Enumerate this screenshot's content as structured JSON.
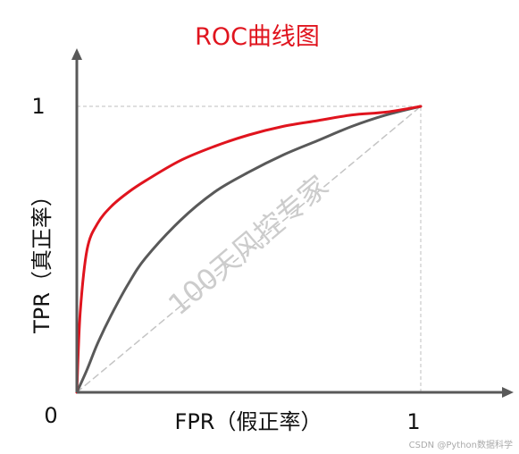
{
  "chart_data": {
    "type": "line",
    "title": "ROC曲线图",
    "xlabel": "FPR（假正率）",
    "ylabel": "TPR（真正率）",
    "xlim": [
      0,
      1
    ],
    "ylim": [
      0,
      1
    ],
    "x_ticks": [
      "0",
      "1"
    ],
    "y_ticks": [
      "1"
    ],
    "grid": false,
    "series": [
      {
        "color": "#e0141e",
        "x": [
          0,
          0.01,
          0.03,
          0.06,
          0.1,
          0.15,
          0.2,
          0.3,
          0.4,
          0.5,
          0.6,
          0.7,
          0.8,
          0.9,
          1.0
        ],
        "y": [
          0,
          0.28,
          0.5,
          0.59,
          0.65,
          0.7,
          0.74,
          0.81,
          0.86,
          0.9,
          0.93,
          0.95,
          0.97,
          0.98,
          1.0
        ]
      },
      {
        "color": "#595959",
        "x": [
          0,
          0.03,
          0.06,
          0.1,
          0.15,
          0.2,
          0.3,
          0.4,
          0.5,
          0.6,
          0.7,
          0.8,
          0.9,
          1.0
        ],
        "y": [
          0,
          0.08,
          0.17,
          0.27,
          0.38,
          0.47,
          0.6,
          0.7,
          0.77,
          0.83,
          0.88,
          0.93,
          0.97,
          1.0
        ]
      },
      {
        "color": "#c4c4c4",
        "dashed": true,
        "x": [
          0,
          1
        ],
        "y": [
          0,
          1
        ]
      }
    ],
    "watermark": "100天风控专家"
  },
  "credit": "CSDN @Python数据科学"
}
